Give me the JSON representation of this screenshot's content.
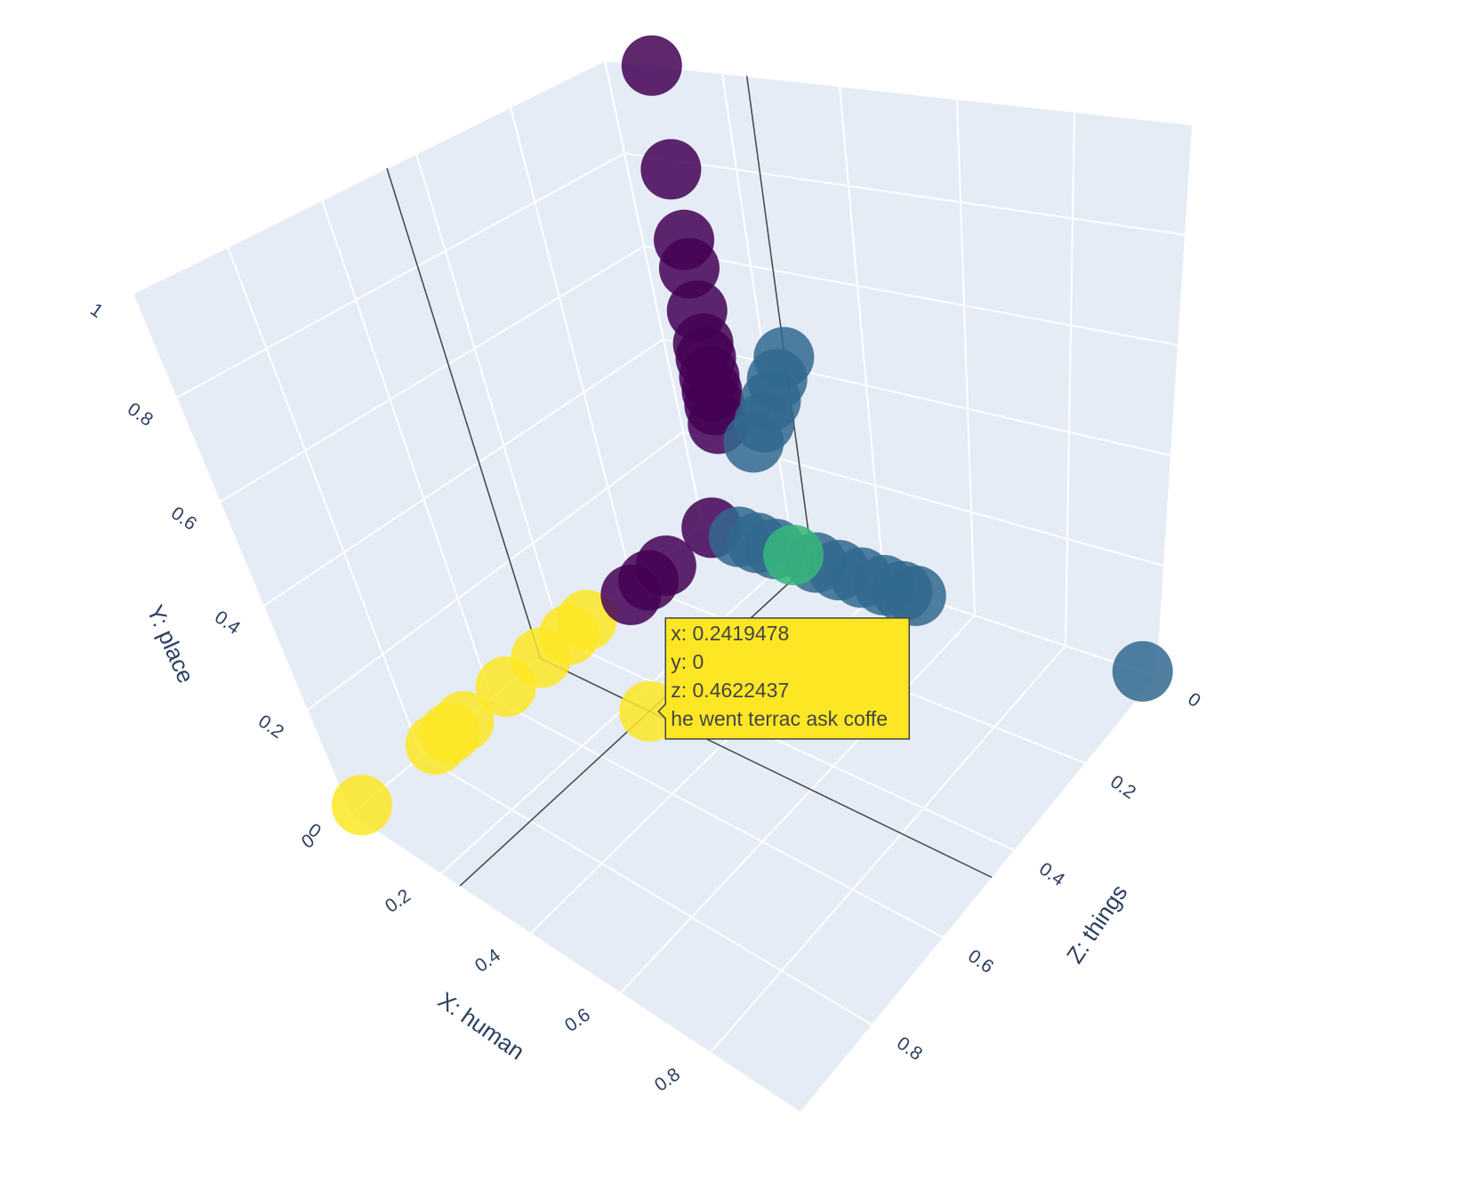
{
  "chart_data": {
    "type": "scatter3d",
    "xaxis_title": "X: human",
    "yaxis_title": "Y: place",
    "zaxis_title": "Z: things",
    "xlim": [
      0,
      1
    ],
    "ylim": [
      0,
      1
    ],
    "zlim": [
      0,
      1
    ],
    "xticks": [
      0,
      0.2,
      0.4,
      0.6,
      0.8
    ],
    "yticks": [
      0,
      0.2,
      0.4,
      0.6,
      0.8,
      1
    ],
    "zticks": [
      0,
      0.2,
      0.4,
      0.6,
      0.8
    ],
    "background": "#e5ecf6",
    "series": [
      {
        "color": "#fde725",
        "x": [
          0,
          0,
          0,
          0,
          0,
          0,
          0,
          0
        ],
        "y": [
          0,
          0,
          0,
          0,
          0,
          0,
          0,
          0
        ],
        "z": [
          0.97,
          0.76,
          0.72,
          0.68,
          0.56,
          0.46,
          0.38,
          0.33
        ]
      },
      {
        "color": "#440154",
        "x": [
          0.02,
          0.02,
          0.02,
          0.02,
          0.08,
          0.08,
          0.08,
          0.08,
          0.08,
          0.08,
          0.08,
          0.08,
          0.08,
          0.08,
          0.08
        ],
        "y": [
          0,
          0,
          0,
          0,
          0.24,
          0.28,
          0.31,
          0.34,
          0.38,
          0.41,
          0.48,
          0.57,
          0.63,
          0.78,
          1
        ],
        "z": [
          0.23,
          0.18,
          0.13,
          0,
          0,
          0,
          0,
          0,
          0,
          0,
          0,
          0,
          0,
          0,
          0
        ]
      },
      {
        "color": "#31688e",
        "x": [
          0.15,
          0.18,
          0.2,
          0.22,
          0.24,
          0.08,
          0.12,
          0.16,
          0.25,
          0.3,
          0.35,
          0.4,
          0.44,
          0.47,
          0.97
        ],
        "y": [
          0.22,
          0.27,
          0.32,
          0.37,
          0.42,
          0,
          0,
          0,
          0,
          0,
          0,
          0,
          0,
          0,
          0
        ],
        "z": [
          0,
          0,
          0,
          0,
          0,
          0,
          0,
          0,
          0,
          0,
          0,
          0,
          0,
          0,
          0
        ]
      },
      {
        "color": "#35b779",
        "x": [
          0.2
        ],
        "y": [
          0
        ],
        "z": [
          0
        ]
      }
    ],
    "hover": {
      "x": 0.2419478,
      "y": 0,
      "z": 0.4622437,
      "color": "#fde725",
      "lines": [
        "x: 0.2419478",
        "y: 0",
        "z: 0.4622437",
        "he went terrac ask coffe"
      ]
    }
  }
}
